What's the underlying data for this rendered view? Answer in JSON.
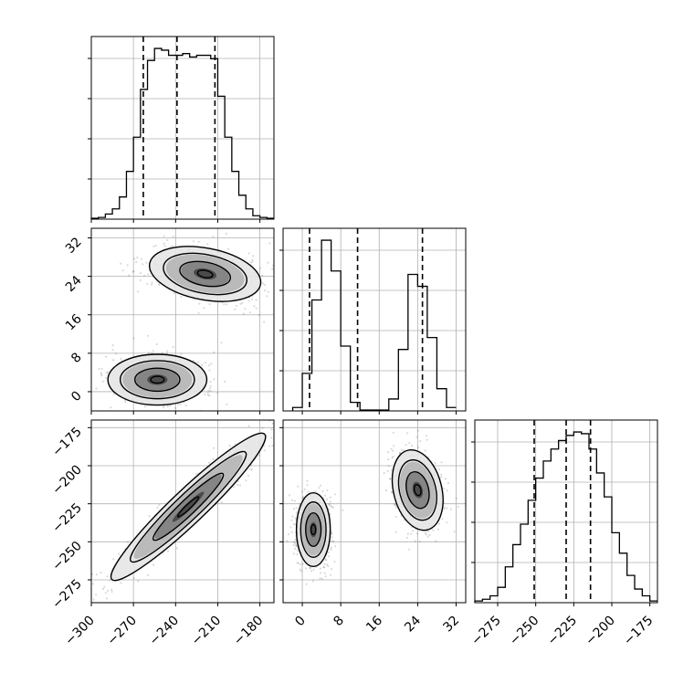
{
  "chart_data": {
    "type": "corner",
    "title": "",
    "grid": true,
    "colors": {
      "line": "#000000",
      "grid": "#b0b0b0",
      "points": "#555555"
    },
    "parameters": [
      {
        "index": 0,
        "range": [
          -300,
          -170
        ],
        "ticks": [
          -300,
          -270,
          -240,
          -210,
          -180
        ],
        "tick_labels": [
          "−300",
          "−270",
          "−240",
          "−210",
          "−180"
        ]
      },
      {
        "index": 1,
        "range": [
          -4,
          34
        ],
        "ticks": [
          0,
          8,
          16,
          24,
          32
        ],
        "tick_labels": [
          "0",
          "8",
          "16",
          "24",
          "32"
        ]
      },
      {
        "index": 2,
        "range": [
          -290,
          -170
        ],
        "ticks": [
          -275,
          -250,
          -225,
          -200,
          -175
        ],
        "tick_labels": [
          "−275",
          "−250",
          "−225",
          "−200",
          "−175"
        ]
      }
    ],
    "diagonal": [
      {
        "param": 0,
        "bins": [
          -300,
          -295,
          -290,
          -285,
          -280,
          -275,
          -270,
          -265,
          -260,
          -255,
          -250,
          -245,
          -240,
          -235,
          -230,
          -225,
          -220,
          -215,
          -210,
          -205,
          -200,
          -195,
          -190,
          -185,
          -180,
          -175,
          -170
        ],
        "counts": [
          0.005,
          0.01,
          0.03,
          0.06,
          0.13,
          0.28,
          0.48,
          0.76,
          0.93,
          1.0,
          0.99,
          0.96,
          0.96,
          0.97,
          0.95,
          0.96,
          0.96,
          0.94,
          0.72,
          0.48,
          0.28,
          0.14,
          0.06,
          0.02,
          0.01,
          0.005
        ],
        "quantiles": [
          -263,
          -239,
          -212
        ]
      },
      {
        "param": 1,
        "bins": [
          -2,
          0,
          2,
          4,
          6,
          8,
          10,
          12,
          14,
          16,
          18,
          20,
          22,
          24,
          26,
          28,
          30,
          32
        ],
        "counts": [
          0.02,
          0.22,
          0.65,
          1.0,
          0.82,
          0.38,
          0.05,
          0.005,
          0.005,
          0.005,
          0.07,
          0.36,
          0.8,
          0.73,
          0.43,
          0.13,
          0.02
        ],
        "quantiles": [
          1.5,
          11.5,
          25
        ]
      },
      {
        "param": 2,
        "bins": [
          -290,
          -285,
          -280,
          -275,
          -270,
          -265,
          -260,
          -255,
          -250,
          -245,
          -240,
          -235,
          -230,
          -225,
          -220,
          -215,
          -210,
          -205,
          -200,
          -195,
          -190,
          -185,
          -180,
          -175,
          -170
        ],
        "counts": [
          0.01,
          0.02,
          0.04,
          0.09,
          0.21,
          0.34,
          0.46,
          0.6,
          0.73,
          0.83,
          0.9,
          0.95,
          0.98,
          1.0,
          0.99,
          0.9,
          0.76,
          0.62,
          0.41,
          0.29,
          0.16,
          0.08,
          0.04,
          0.01
        ],
        "quantiles": [
          -251,
          -230,
          -214
        ]
      }
    ],
    "pairs": [
      {
        "x_param": 0,
        "y_param": 1,
        "clusters": [
          {
            "center": [
              -253,
              2.5
            ],
            "spread": [
              16,
              2.4
            ],
            "corr": 0.0
          },
          {
            "center": [
              -219,
              24.5
            ],
            "spread": [
              18,
              2.6
            ],
            "corr": -0.3
          }
        ]
      },
      {
        "x_param": 0,
        "y_param": 2,
        "clusters": [
          {
            "center": [
              -231,
              -227
            ],
            "spread": [
              25,
              22
            ],
            "corr": 0.95
          }
        ]
      },
      {
        "x_param": 1,
        "y_param": 2,
        "clusters": [
          {
            "center": [
              2.3,
              -242
            ],
            "spread": [
              1.6,
              11
            ],
            "corr": 0.0
          },
          {
            "center": [
              24,
              -216
            ],
            "spread": [
              2.4,
              12
            ],
            "corr": -0.25
          }
        ]
      }
    ]
  }
}
